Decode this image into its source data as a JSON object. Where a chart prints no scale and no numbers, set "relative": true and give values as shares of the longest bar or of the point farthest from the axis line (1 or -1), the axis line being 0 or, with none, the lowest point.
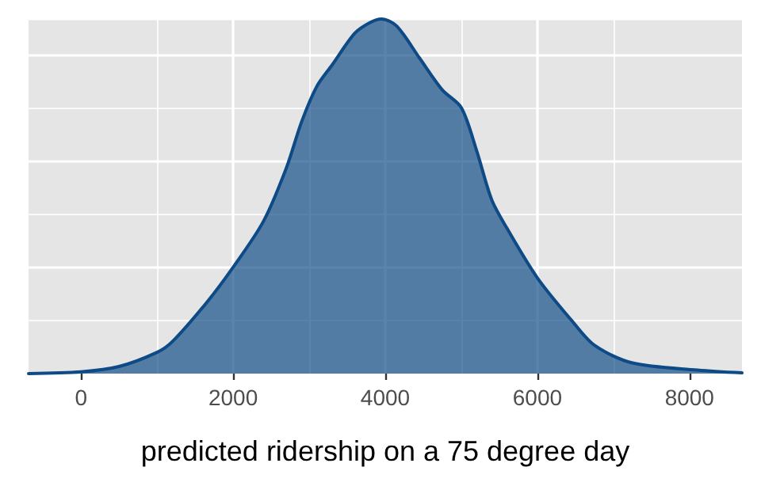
{
  "chart_data": {
    "type": "area",
    "relative": true,
    "xlabel": "predicted ridership on a 75 degree day",
    "xlim": [
      -690,
      8690
    ],
    "xticks": [
      0,
      2000,
      4000,
      6000,
      8000
    ],
    "grid": true,
    "marker": "none",
    "line_style": "solid",
    "series": [
      {
        "color": "#0d4a86",
        "x": [
          -690,
          0,
          500,
          1000,
          1200,
          1650,
          2000,
          2400,
          2700,
          2900,
          3100,
          3300,
          3600,
          3800,
          3950,
          4150,
          4450,
          4750,
          5000,
          5200,
          5400,
          5600,
          6000,
          6450,
          6750,
          7250,
          8100,
          8690
        ],
        "values": [
          0,
          0.005,
          0.02,
          0.06,
          0.09,
          0.2,
          0.3,
          0.43,
          0.58,
          0.71,
          0.81,
          0.87,
          0.96,
          0.99,
          1,
          0.98,
          0.89,
          0.8,
          0.75,
          0.63,
          0.49,
          0.41,
          0.27,
          0.15,
          0.08,
          0.03,
          0.01,
          0.002
        ]
      }
    ]
  }
}
